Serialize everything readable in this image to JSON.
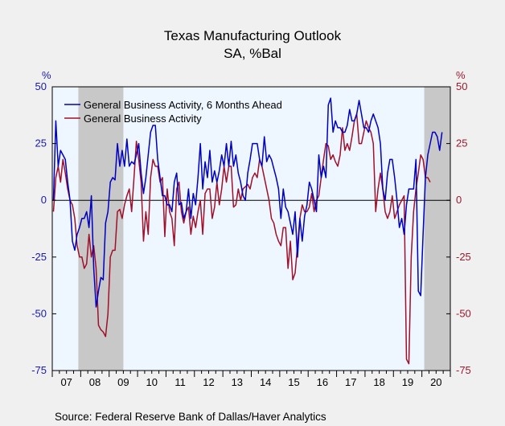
{
  "chart_data": {
    "type": "line",
    "title": "Texas Manufacturing Outlook",
    "subtitle": "SA, %Bal",
    "left_unit": "%",
    "right_unit": "%",
    "ylim": [
      -75,
      50
    ],
    "yticks": [
      50,
      25,
      0,
      -25,
      -50,
      -75
    ],
    "x_start": "2007-01",
    "x_end": "2021-01",
    "x_tick_labels": [
      "07",
      "08",
      "09",
      "10",
      "11",
      "12",
      "13",
      "14",
      "15",
      "16",
      "17",
      "18",
      "19",
      "20"
    ],
    "recessions": [
      {
        "start": "2007-12",
        "end": "2009-06"
      },
      {
        "start": "2020-02",
        "end": "2020-12"
      }
    ],
    "legend_position": "top-left",
    "source": "Source:  Federal Reserve Bank of Dallas/Haver Analytics",
    "colors": {
      "series_future": "#0000c0",
      "series_current": "#a0102a",
      "left_axis": "#1a1aa6",
      "right_axis": "#9a1a30",
      "plot_bg": "#eef6ff",
      "recession": "#c8c8c8"
    },
    "series": [
      {
        "name": "General Business Activity, 6 Months Ahead",
        "start": "2007-01",
        "values": [
          0,
          35,
          15,
          22,
          20,
          18,
          8,
          0,
          -18,
          -22,
          -15,
          -12,
          -8,
          -8,
          -5,
          -12,
          2,
          -30,
          -47,
          -40,
          -34,
          -35,
          -10,
          -5,
          8,
          10,
          9,
          25,
          15,
          22,
          15,
          27,
          15,
          17,
          16,
          20,
          25,
          12,
          3,
          10,
          20,
          30,
          33,
          33,
          18,
          10,
          2,
          2,
          -2,
          -2,
          -5,
          8,
          12,
          -2,
          -1,
          -8,
          -5,
          5,
          -8,
          3,
          -2,
          10,
          25,
          5,
          17,
          10,
          22,
          8,
          13,
          8,
          13,
          20,
          15,
          25,
          15,
          26,
          15,
          20,
          12,
          8,
          2,
          0,
          12,
          18,
          25,
          25,
          25,
          18,
          15,
          28,
          17,
          20,
          18,
          14,
          10,
          5,
          -8,
          5,
          -3,
          -5,
          -10,
          -15,
          -5,
          -25,
          -8,
          -18,
          -7,
          -2,
          8,
          5,
          0,
          -5,
          20,
          10,
          15,
          10,
          42,
          45,
          30,
          35,
          32,
          32,
          30,
          30,
          33,
          40,
          35,
          35,
          38,
          44,
          38,
          32,
          32,
          30,
          35,
          38,
          35,
          32,
          25,
          5,
          0,
          12,
          18,
          18,
          10,
          0,
          -12,
          -8,
          -15,
          -2,
          5,
          5,
          5,
          18,
          -40,
          -42,
          -15,
          10,
          20,
          25,
          30,
          30,
          28,
          22,
          30
        ]
      },
      {
        "name": "General Business Activity",
        "start": "2007-01",
        "values": [
          -5,
          10,
          15,
          8,
          18,
          12,
          5,
          0,
          -2,
          -8,
          -20,
          -25,
          -25,
          -30,
          -28,
          -15,
          -25,
          -20,
          -30,
          -55,
          -57,
          -58,
          -60,
          -50,
          -25,
          -22,
          -22,
          -5,
          -4,
          -8,
          -2,
          2,
          5,
          -5,
          10,
          26,
          18,
          8,
          -18,
          -5,
          -15,
          10,
          18,
          15,
          15,
          8,
          10,
          -16,
          5,
          -5,
          -8,
          -20,
          5,
          8,
          -5,
          -10,
          -5,
          -3,
          -15,
          -7,
          -12,
          -5,
          0,
          -15,
          3,
          5,
          5,
          -8,
          -3,
          8,
          -2,
          5,
          15,
          8,
          15,
          15,
          -3,
          -2,
          5,
          0,
          5,
          6,
          7,
          5,
          10,
          12,
          10,
          18,
          15,
          10,
          5,
          0,
          -8,
          -10,
          -15,
          -18,
          -20,
          -12,
          -12,
          -30,
          -18,
          -35,
          -32,
          -20,
          -8,
          -2,
          -5,
          -5,
          -3,
          3,
          -5,
          0,
          2,
          10,
          18,
          25,
          24,
          18,
          20,
          17,
          15,
          20,
          32,
          22,
          25,
          22,
          28,
          35,
          38,
          25,
          25,
          30,
          35,
          32,
          30,
          25,
          -5,
          5,
          12,
          5,
          -5,
          -8,
          -5,
          2,
          -8,
          -5,
          -2,
          0,
          2,
          -70,
          -72,
          -25,
          -5,
          5,
          12,
          20,
          18,
          10,
          10,
          8
        ]
      }
    ]
  }
}
